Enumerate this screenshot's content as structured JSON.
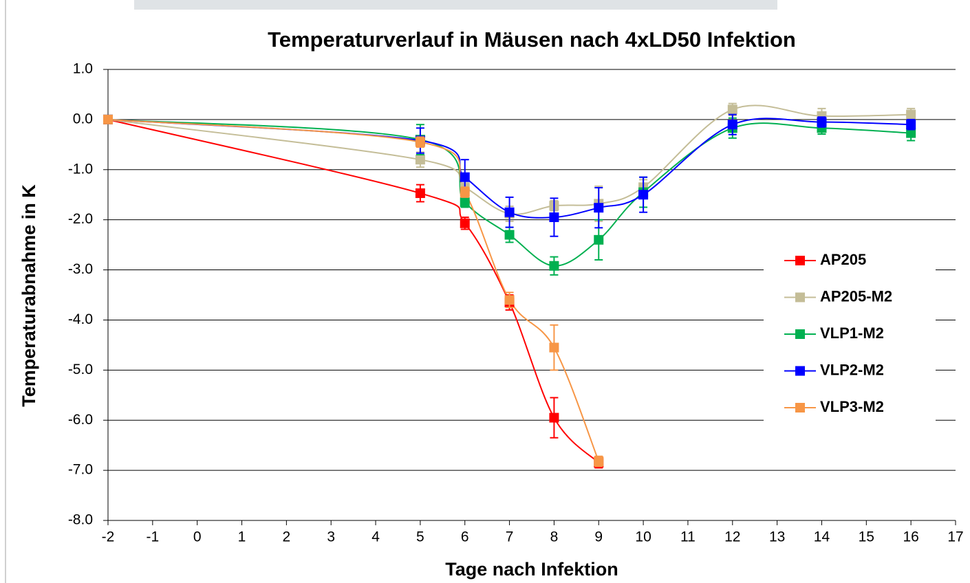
{
  "chart_data": {
    "type": "line",
    "title": "Temperaturverlauf in Mäusen nach 4xLD50 Infektion",
    "x_label": "Tage nach Infektion",
    "y_label": "Temperaturabnahme in K",
    "xlim": [
      -2,
      17
    ],
    "xticks": [
      -2,
      -1,
      0,
      1,
      2,
      3,
      4,
      5,
      6,
      7,
      8,
      9,
      10,
      11,
      12,
      13,
      14,
      15,
      16,
      17
    ],
    "ylim": [
      -8,
      1
    ],
    "yticks": [
      {
        "value": 1,
        "label": "1.0"
      },
      {
        "value": 0,
        "label": "0.0"
      },
      {
        "value": -1,
        "label": "-1.0"
      },
      {
        "value": -2,
        "label": "-2.0"
      },
      {
        "value": -3,
        "label": "-3.0"
      },
      {
        "value": -4,
        "label": "-4.0"
      },
      {
        "value": -5,
        "label": "-5.0"
      },
      {
        "value": -6,
        "label": "-6.0"
      },
      {
        "value": -7,
        "label": "-7.0"
      },
      {
        "value": -8,
        "label": "-8.0"
      }
    ],
    "grid": true,
    "legend": "right",
    "series": [
      {
        "name": "AP205",
        "color": "#ff0000",
        "x": [
          -2,
          5,
          6,
          7,
          8,
          9
        ],
        "values": [
          0,
          -1.47,
          -2.07,
          -3.65,
          -5.95,
          -6.85
        ],
        "errors": [
          0,
          0.17,
          0.12,
          0.15,
          0.4,
          0.1
        ]
      },
      {
        "name": "AP205-M2",
        "color": "#c4bd97",
        "x": [
          -2,
          5,
          6,
          7,
          8,
          9,
          10,
          12,
          14,
          16
        ],
        "values": [
          0,
          -0.8,
          -1.35,
          -1.88,
          -1.72,
          -1.68,
          -1.35,
          0.2,
          0.07,
          0.1
        ],
        "errors": [
          0,
          0.15,
          0.15,
          0.15,
          0.1,
          0.35,
          0.15,
          0.12,
          0.15,
          0.12
        ]
      },
      {
        "name": "VLP1-M2",
        "color": "#00b050",
        "x": [
          -2,
          5,
          6,
          7,
          8,
          9,
          10,
          12,
          14,
          16
        ],
        "values": [
          0,
          -0.4,
          -1.65,
          -2.3,
          -2.92,
          -2.4,
          -1.45,
          -0.17,
          -0.17,
          -0.27
        ],
        "errors": [
          0,
          0.3,
          0.1,
          0.15,
          0.18,
          0.4,
          0.3,
          0.2,
          0.12,
          0.15
        ]
      },
      {
        "name": "VLP2-M2",
        "color": "#0000ff",
        "x": [
          -2,
          5,
          6,
          7,
          8,
          9,
          10,
          12,
          14,
          16
        ],
        "values": [
          0,
          -0.42,
          -1.15,
          -1.85,
          -1.95,
          -1.76,
          -1.5,
          -0.1,
          -0.05,
          -0.1
        ],
        "errors": [
          0,
          0.25,
          0.35,
          0.3,
          0.38,
          0.4,
          0.35,
          0.2,
          0.1,
          0.1
        ]
      },
      {
        "name": "VLP3-M2",
        "color": "#f79646",
        "x": [
          -2,
          5,
          6,
          7,
          8,
          9
        ],
        "values": [
          0,
          -0.45,
          -1.45,
          -3.6,
          -4.55,
          -6.82
        ],
        "errors": [
          0,
          0.1,
          0.1,
          0.15,
          0.45,
          0.1
        ]
      }
    ]
  }
}
